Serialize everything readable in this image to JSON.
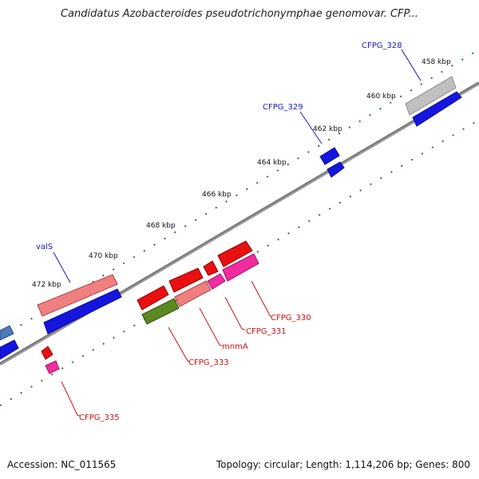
{
  "title": "Candidatus Azobacteroides pseudotrichonymphae genomovar. CFP...",
  "footer": {
    "accession": "Accession: NC_011565",
    "summary": "Topology: circular; Length: 1,114,206 bp; Genes: 800"
  },
  "ticks": [
    "458 kbp",
    "460 kbp",
    "462 kbp",
    "464 kbp",
    "466 kbp",
    "468 kbp",
    "470 kbp",
    "472 kbp"
  ],
  "genes": {
    "CFPG_328": "CFPG_328",
    "CFPG_329": "CFPG_329",
    "valS": "valS",
    "CFPG_330": "CFPG_330",
    "CFPG_331": "CFPG_331",
    "mnmA": "mnmA",
    "CFPG_333": "CFPG_333",
    "CFPG_335": "CFPG_335"
  },
  "colors": {
    "backbone": "#7a7a7a",
    "tick": "#2a7a2a",
    "cds_blue": "#1515e0",
    "cds_red": "#e81010",
    "cds_salmon": "#f08080",
    "cds_pink": "#f02ca0",
    "cds_olive": "#5a8a20",
    "cds_gray": "#c0c0c0",
    "label_blue": "#1a1ac8",
    "label_red": "#cc1010"
  }
}
